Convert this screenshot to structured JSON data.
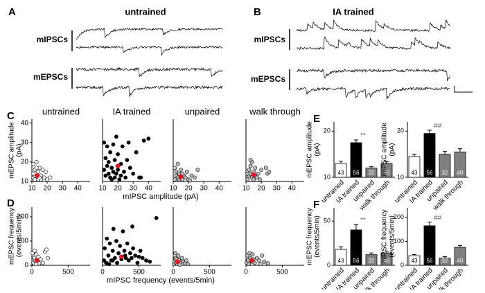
{
  "panel_labels": [
    "A",
    "B",
    "C",
    "D",
    "E",
    "F"
  ],
  "traces": [
    {
      "title": "untrained",
      "labels": [
        "mIPSCs",
        "mEPSCs"
      ]
    },
    {
      "title": "IA trained",
      "labels": [
        "mIPSCs",
        "mEPSCs"
      ]
    }
  ],
  "chart_data": [
    {
      "type": "scatter",
      "title": "untrained",
      "ylabel": [
        "mEPSC amplitude",
        "(pA)"
      ],
      "xlim": [
        10,
        48
      ],
      "xticks": [
        10,
        20,
        30,
        40
      ],
      "ylim": [
        10,
        42
      ],
      "yticks": [
        10,
        20,
        30,
        40
      ],
      "series": [
        {
          "color": "#ffffff",
          "x": [
            11,
            12,
            13,
            14,
            12,
            15,
            11,
            13,
            16,
            18,
            20,
            17,
            19,
            14,
            12,
            16,
            22,
            11,
            13,
            15
          ],
          "values": [
            12,
            11,
            13,
            15,
            16,
            17,
            19,
            20,
            13,
            12,
            11,
            16,
            15,
            11,
            13,
            11,
            12,
            14,
            17,
            12
          ]
        },
        {
          "color": "#e8101a",
          "x": [
            13.5
          ],
          "values": [
            13
          ]
        }
      ]
    },
    {
      "type": "scatter",
      "title": "IA trained",
      "xlabel": "mIPSC amplitude (pA)",
      "xlim": [
        10,
        48
      ],
      "xticks": [
        10,
        20,
        30,
        40
      ],
      "ylim": [
        10,
        42
      ],
      "series": [
        {
          "color": "#000000",
          "x": [
            11,
            12,
            12,
            13,
            14,
            14,
            15,
            15,
            16,
            16,
            17,
            17,
            18,
            18,
            19,
            19,
            20,
            20,
            21,
            22,
            22,
            23,
            24,
            25,
            26,
            28,
            30,
            32,
            35,
            37,
            40,
            13,
            11,
            27,
            34
          ],
          "values": [
            16,
            22,
            13,
            18,
            20,
            14,
            12,
            25,
            17,
            11,
            15,
            29,
            21,
            12,
            14,
            33,
            16,
            24,
            11,
            19,
            13,
            28,
            15,
            12,
            21,
            17,
            14,
            25,
            12,
            31,
            32,
            28,
            30,
            30,
            12
          ]
        },
        {
          "color": "#e8101a",
          "x": [
            20
          ],
          "values": [
            18
          ]
        }
      ]
    },
    {
      "type": "scatter",
      "title": "unpaired",
      "xlim": [
        10,
        48
      ],
      "xticks": [
        10,
        20,
        30,
        40
      ],
      "ylim": [
        10,
        42
      ],
      "series": [
        {
          "color": "#bdbdbd",
          "x": [
            11,
            12,
            12,
            13,
            14,
            14,
            15,
            15,
            16,
            17,
            18,
            19,
            20,
            22,
            24,
            26,
            13,
            11,
            16,
            21
          ],
          "values": [
            11,
            13,
            15,
            12,
            14,
            11,
            16,
            12,
            11,
            13,
            12,
            15,
            11,
            13,
            12,
            16,
            19,
            17,
            14,
            10.5
          ]
        },
        {
          "color": "#e8101a",
          "x": [
            15
          ],
          "values": [
            12.5
          ]
        }
      ]
    },
    {
      "type": "scatter",
      "title": "walk through",
      "xlim": [
        10,
        48
      ],
      "xticks": [
        10,
        20,
        30,
        40
      ],
      "ylim": [
        10,
        42
      ],
      "series": [
        {
          "color": "#bdbdbd",
          "x": [
            11,
            12,
            12,
            13,
            13,
            14,
            14,
            15,
            15,
            16,
            17,
            18,
            19,
            20,
            23,
            24,
            25,
            13,
            11,
            16
          ],
          "values": [
            11,
            13,
            16,
            14,
            18,
            12,
            20,
            15,
            11,
            13,
            12,
            14,
            11,
            16,
            17,
            14,
            15,
            21,
            14,
            17
          ]
        },
        {
          "color": "#e8101a",
          "x": [
            15
          ],
          "values": [
            13.5
          ]
        }
      ]
    },
    {
      "type": "scatter",
      "ylabel": [
        "mEPSC frequency",
        "(events/5min)"
      ],
      "xlim": [
        0,
        800
      ],
      "xticks": [
        0,
        500
      ],
      "ylim": [
        0,
        240
      ],
      "yticks": [
        0,
        100,
        200
      ],
      "series": [
        {
          "color": "#ffffff",
          "x": [
            20,
            30,
            40,
            50,
            60,
            80,
            100,
            120,
            150,
            180,
            200,
            220,
            10,
            40,
            90,
            60
          ],
          "values": [
            10,
            30,
            5,
            20,
            45,
            15,
            8,
            25,
            10,
            55,
            65,
            30,
            50,
            60,
            35,
            5
          ]
        },
        {
          "color": "#e8101a",
          "x": [
            70
          ],
          "values": [
            20
          ]
        }
      ]
    },
    {
      "type": "scatter",
      "xlabel": "mIPSC frequency (events/5min)",
      "xlim": [
        0,
        800
      ],
      "xticks": [
        0,
        500
      ],
      "ylim": [
        0,
        240
      ],
      "series": [
        {
          "color": "#000000",
          "x": [
            20,
            30,
            50,
            60,
            80,
            100,
            120,
            140,
            150,
            170,
            190,
            200,
            220,
            240,
            260,
            280,
            300,
            320,
            340,
            360,
            380,
            400,
            420,
            450,
            480,
            500,
            520,
            550,
            600,
            650,
            740,
            410,
            310,
            140,
            90
          ],
          "values": [
            20,
            70,
            10,
            110,
            40,
            90,
            20,
            60,
            150,
            30,
            100,
            10,
            50,
            80,
            25,
            140,
            60,
            30,
            90,
            20,
            50,
            30,
            70,
            40,
            10,
            35,
            60,
            30,
            20,
            15,
            195,
            160,
            40,
            20,
            5
          ]
        },
        {
          "color": "#e8101a",
          "x": [
            260
          ],
          "values": [
            35
          ]
        }
      ]
    },
    {
      "type": "scatter",
      "xlim": [
        0,
        800
      ],
      "xticks": [
        0,
        500
      ],
      "ylim": [
        0,
        240
      ],
      "series": [
        {
          "color": "#bdbdbd",
          "x": [
            10,
            20,
            30,
            40,
            50,
            60,
            70,
            80,
            100,
            120,
            140,
            160,
            180,
            200,
            30,
            90
          ],
          "values": [
            5,
            15,
            30,
            10,
            25,
            5,
            40,
            20,
            10,
            30,
            15,
            8,
            20,
            5,
            50,
            3
          ]
        },
        {
          "color": "#e8101a",
          "x": [
            60
          ],
          "values": [
            15
          ]
        }
      ]
    },
    {
      "type": "scatter",
      "xlim": [
        0,
        800
      ],
      "xticks": [
        0,
        500
      ],
      "ylim": [
        0,
        240
      ],
      "series": [
        {
          "color": "#bdbdbd",
          "x": [
            10,
            20,
            30,
            40,
            60,
            80,
            100,
            120,
            150,
            180,
            200,
            220,
            250,
            300,
            50,
            90
          ],
          "values": [
            10,
            40,
            20,
            5,
            30,
            15,
            25,
            10,
            30,
            20,
            5,
            40,
            15,
            8,
            50,
            45
          ]
        },
        {
          "color": "#e8101a",
          "x": [
            80
          ],
          "values": [
            20
          ]
        }
      ]
    },
    {
      "type": "bar",
      "ylabel": [
        "mEPSC amplitude",
        "(pA)"
      ],
      "categories": [
        "untrained",
        "IA trained",
        "unpaired",
        "walk through"
      ],
      "values": [
        13,
        17.5,
        12,
        13
      ],
      "errors": [
        0.5,
        0.6,
        0.3,
        0.4
      ],
      "colors": [
        "#ffffff",
        "#000000",
        "#808080",
        "#808080"
      ],
      "n_labels": [
        43,
        56,
        32,
        40
      ],
      "ylim": [
        10,
        22
      ],
      "yticks": [
        10,
        20
      ],
      "annotation": {
        "category": "IA trained",
        "text": "**"
      }
    },
    {
      "type": "bar",
      "ylabel": [
        "mIPSC amplitude",
        "(pA)"
      ],
      "categories": [
        "untrained",
        "IA trained",
        "unpaired",
        "walk through"
      ],
      "values": [
        14.5,
        19.5,
        15,
        15.5
      ],
      "errors": [
        0.5,
        0.7,
        0.6,
        0.7
      ],
      "colors": [
        "#ffffff",
        "#000000",
        "#808080",
        "#808080"
      ],
      "n_labels": [
        43,
        56,
        32,
        40
      ],
      "ylim": [
        10,
        22
      ],
      "yticks": [
        10,
        20
      ],
      "annotation": {
        "category": "IA trained",
        "text": "##"
      }
    },
    {
      "type": "bar",
      "ylabel": [
        "mEPSC frequency",
        "(events/5min)"
      ],
      "categories": [
        "untrained",
        "IA trained",
        "unpaired",
        "walk through"
      ],
      "values": [
        18,
        40,
        12,
        14
      ],
      "errors": [
        3,
        6,
        2,
        2
      ],
      "colors": [
        "#ffffff",
        "#000000",
        "#808080",
        "#808080"
      ],
      "n_labels": [
        43,
        56,
        32,
        40
      ],
      "ylim": [
        0,
        65
      ],
      "yticks": [
        0,
        50
      ],
      "annotation": {
        "category": "IA trained",
        "text": "**"
      }
    },
    {
      "type": "bar",
      "ylabel": [
        "mIPSC frequency",
        "(events/5min)"
      ],
      "categories": [
        "untrained",
        "IA trained",
        "unpaired",
        "walk through"
      ],
      "values": [
        40,
        165,
        30,
        75
      ],
      "errors": [
        5,
        15,
        6,
        8
      ],
      "colors": [
        "#ffffff",
        "#000000",
        "#808080",
        "#808080"
      ],
      "n_labels": [
        43,
        56,
        32,
        40
      ],
      "ylim": [
        0,
        240
      ],
      "yticks": [
        0,
        100,
        200
      ],
      "annotation": {
        "category": "IA trained",
        "text": "##"
      }
    }
  ]
}
